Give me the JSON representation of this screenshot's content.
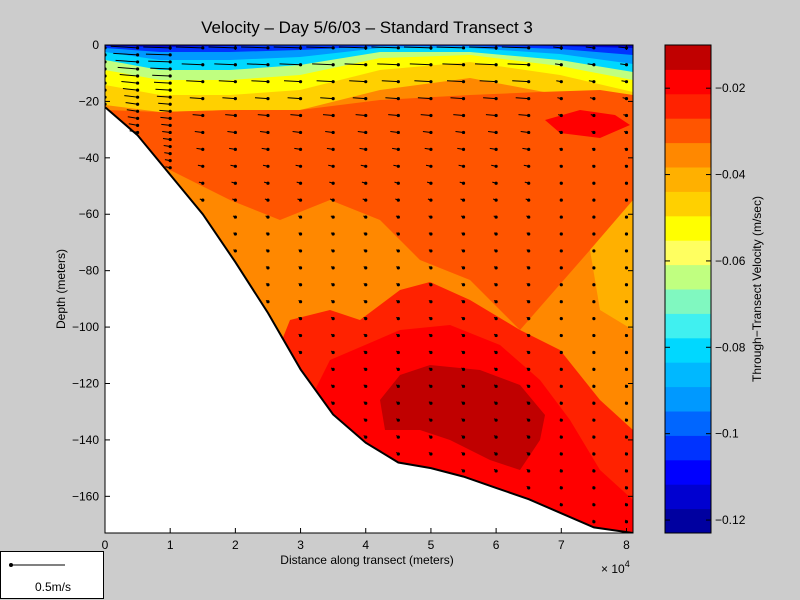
{
  "chart_data": {
    "type": "heatmap",
    "title": "Velocity – Day 5/6/03 – Standard Transect 3",
    "xlabel": "Distance along transect (meters)",
    "ylabel": "Depth (meters)",
    "x_multiplier_label": "× 10",
    "x_multiplier_exp": "4",
    "xlim": [
      0,
      8.1
    ],
    "ylim": [
      -173,
      0
    ],
    "x_ticks": [
      "0",
      "1",
      "2",
      "3",
      "4",
      "5",
      "6",
      "7",
      "8"
    ],
    "y_ticks": [
      "0",
      "−20",
      "−40",
      "−60",
      "−80",
      "−100",
      "−120",
      "−140",
      "−160"
    ],
    "colorbar": {
      "label": "Through−Transect Velocity (m/sec)",
      "range": [
        -0.123,
        -0.01
      ],
      "ticks": [
        "−0.02",
        "−0.04",
        "−0.06",
        "−0.08",
        "−0.1",
        "−0.12"
      ],
      "colors": [
        "#0000a0",
        "#0000d0",
        "#0000ff",
        "#0033ff",
        "#0066ff",
        "#0099ff",
        "#00b8ff",
        "#00d8ff",
        "#40f0f0",
        "#80f8c0",
        "#c0ff80",
        "#ffff60",
        "#ffff00",
        "#ffd000",
        "#ffb000",
        "#ff8800",
        "#ff5500",
        "#ff2200",
        "#ff0000",
        "#c00000"
      ]
    },
    "bottom_profile": [
      [
        0,
        -22
      ],
      [
        0.5,
        -32
      ],
      [
        1,
        -46
      ],
      [
        1.5,
        -60
      ],
      [
        2,
        -77
      ],
      [
        2.5,
        -95
      ],
      [
        3,
        -115
      ],
      [
        3.5,
        -131
      ],
      [
        4,
        -141
      ],
      [
        4.5,
        -148
      ],
      [
        5,
        -150
      ],
      [
        5.5,
        -153
      ],
      [
        6,
        -157
      ],
      [
        6.5,
        -161
      ],
      [
        7,
        -166
      ],
      [
        7.5,
        -171
      ],
      [
        8.1,
        -173
      ]
    ],
    "arrow_columns": [
      0,
      0.5,
      1,
      1.5,
      2,
      2.5,
      3,
      3.5,
      4,
      4.5,
      5,
      5.5,
      6,
      6.5,
      7,
      7.5,
      8
    ],
    "scale_arrow_label": "0.5m/s"
  }
}
